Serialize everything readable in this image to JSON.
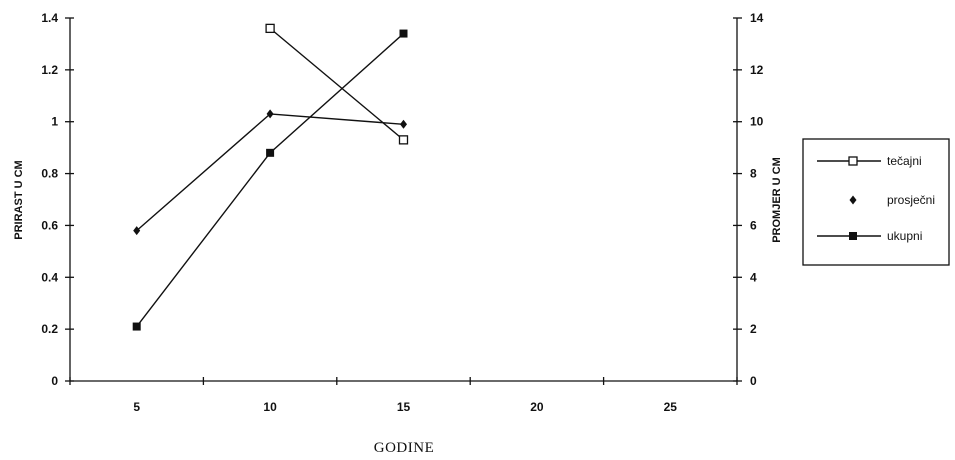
{
  "chart_data": {
    "type": "line",
    "title": "",
    "xlabel": "GODINE",
    "ylabel": "PRIRAST U CM",
    "y2label": "PROMJER U CM",
    "x_ticks": [
      "5",
      "10",
      "15",
      "20",
      "25"
    ],
    "xlim": [
      2.5,
      27.5
    ],
    "ylim": [
      0,
      1.4
    ],
    "y_ticks": [
      "0",
      "0.2",
      "0.4",
      "0.6",
      "0.8",
      "1",
      "1.2",
      "1.4"
    ],
    "y2lim": [
      0,
      14
    ],
    "y2_ticks": [
      "0",
      "2",
      "4",
      "6",
      "8",
      "10",
      "12",
      "14"
    ],
    "grid": false,
    "legend_position": "right",
    "series": [
      {
        "name": "tečajni",
        "axis": "left",
        "marker": "open-square",
        "x": [
          10,
          15
        ],
        "y": [
          1.36,
          0.93
        ]
      },
      {
        "name": "prosječni",
        "axis": "left",
        "marker": "diamond",
        "x": [
          5,
          10,
          15
        ],
        "y": [
          0.58,
          1.03,
          0.99
        ]
      },
      {
        "name": "ukupni",
        "axis": "right",
        "marker": "filled-square",
        "x": [
          5,
          10,
          15
        ],
        "y": [
          2.1,
          8.8,
          13.4
        ]
      }
    ]
  }
}
